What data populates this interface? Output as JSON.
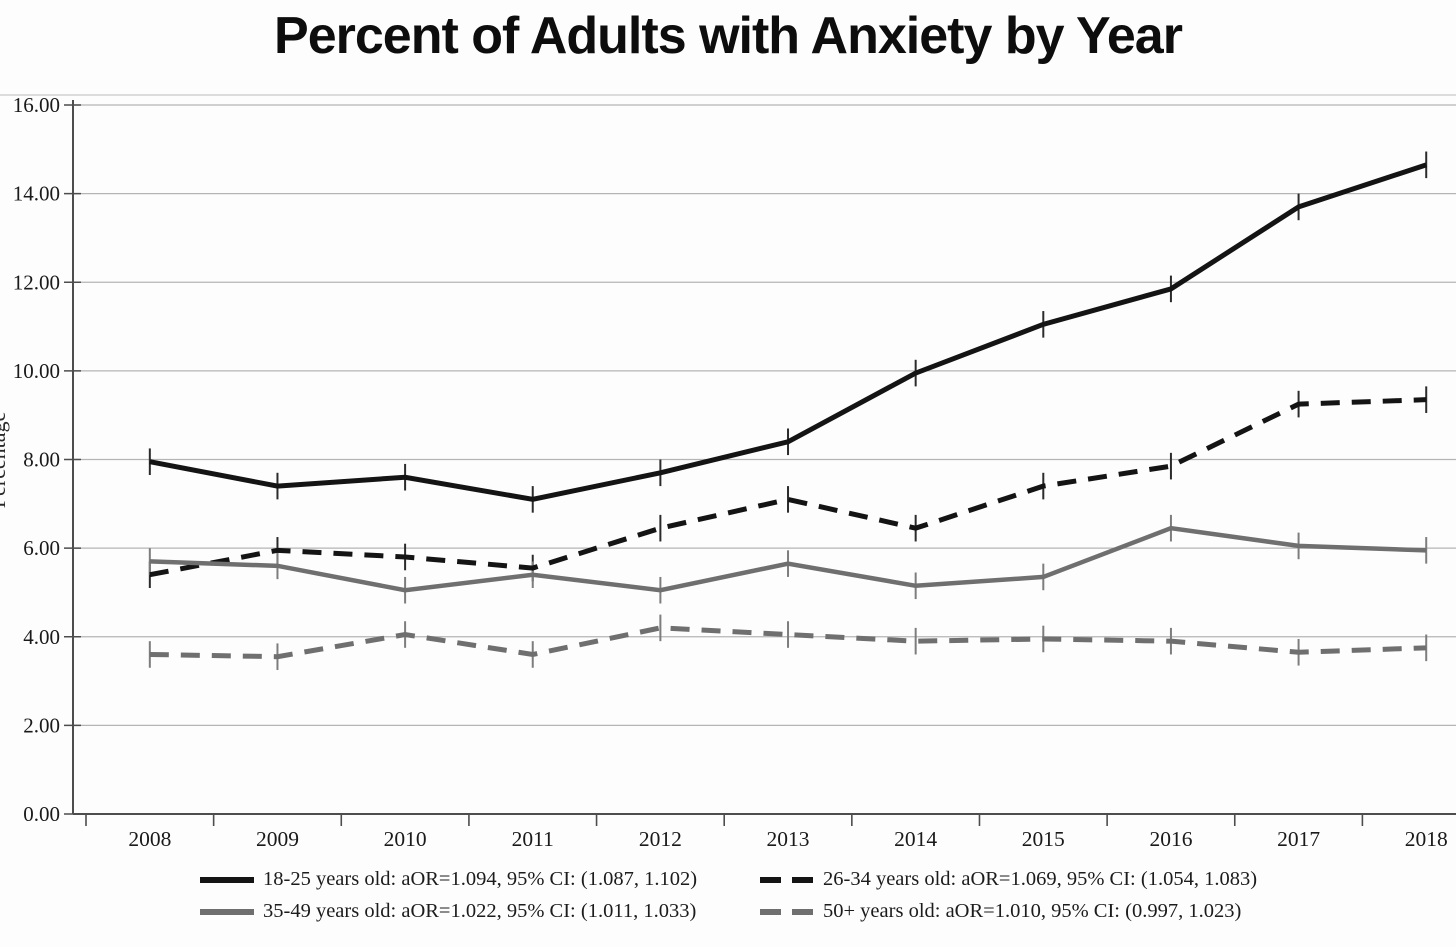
{
  "title": "Percent of Adults with Anxiety by Year",
  "chart_data": {
    "type": "line",
    "categories": [
      "2008",
      "2009",
      "2010",
      "2011",
      "2012",
      "2013",
      "2014",
      "2015",
      "2016",
      "2017",
      "2018"
    ],
    "series": [
      {
        "name": "18-25 years old",
        "legend_label": "18-25 years old: aOR=1.094, 95% CI: (1.087, 1.102)",
        "color": "#141414",
        "style": "solid",
        "values": [
          7.95,
          7.4,
          7.6,
          7.1,
          7.7,
          8.4,
          9.95,
          11.05,
          11.85,
          13.7,
          14.65
        ]
      },
      {
        "name": "26-34 years old",
        "legend_label": "26-34 years old: aOR=1.069, 95% CI: (1.054, 1.083)",
        "color": "#141414",
        "style": "dashed",
        "values": [
          5.4,
          5.95,
          5.8,
          5.55,
          6.45,
          7.1,
          6.45,
          7.4,
          7.85,
          9.25,
          9.35
        ]
      },
      {
        "name": "35-49 years old",
        "legend_label": "35-49 years old: aOR=1.022, 95% CI: (1.011, 1.033)",
        "color": "#6f6f6f",
        "style": "solid",
        "values": [
          5.7,
          5.6,
          5.05,
          5.4,
          5.05,
          5.65,
          5.15,
          5.35,
          6.45,
          6.05,
          5.95
        ]
      },
      {
        "name": "50+ years old",
        "legend_label": "50+ years old: aOR=1.010, 95% CI: (0.997, 1.023)",
        "color": "#6f6f6f",
        "style": "dashed",
        "values": [
          3.6,
          3.55,
          4.05,
          3.6,
          4.2,
          4.05,
          3.9,
          3.95,
          3.9,
          3.65,
          3.75
        ]
      }
    ],
    "xlabel": "",
    "ylabel": "Percentage",
    "ylim": [
      0,
      16
    ],
    "ytick_step": 2,
    "ytick_labels": [
      "0.00",
      "2.00",
      "4.00",
      "6.00",
      "8.00",
      "10.00",
      "12.00",
      "14.00",
      "16.00"
    ],
    "grid": "horizontal",
    "error_bars": true,
    "error_bar_halfwidth_approx": 0.3,
    "legend_position": "bottom"
  }
}
